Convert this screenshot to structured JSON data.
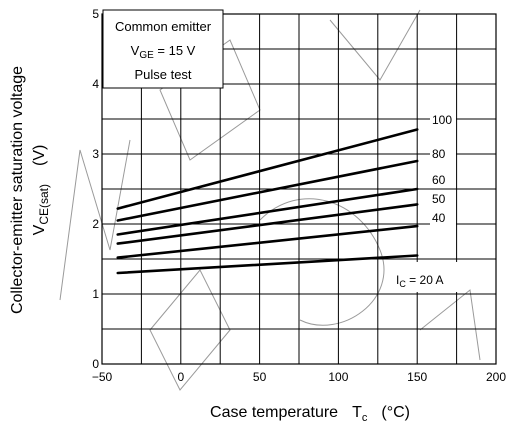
{
  "chart_data": {
    "type": "line",
    "xlabel_text": "Case temperature",
    "xlabel_symbol": "T",
    "xlabel_symbol_sub": "c",
    "xlabel_unit": "(°C)",
    "ylabel_line1": "Collector-emitter saturation voltage",
    "ylabel_symbol": "V",
    "ylabel_symbol_sub": "CE(sat)",
    "ylabel_unit": "(V)",
    "xlim": [
      -50,
      200
    ],
    "ylim": [
      0,
      5
    ],
    "x_ticks": [
      -50,
      0,
      50,
      100,
      150,
      200
    ],
    "y_ticks": [
      0,
      1,
      2,
      3,
      4,
      5
    ],
    "grid": true,
    "conditions": [
      "Common emitter",
      "V_GE = 15 V",
      "Pulse test"
    ],
    "condition_prefix": "V",
    "condition_sub": "GE",
    "condition_suffix": " = 15 V",
    "parameter_symbol": "I",
    "parameter_sub": "C",
    "parameter_suffix": " = 20 A",
    "x": [
      -40,
      150
    ],
    "series": [
      {
        "name": "100",
        "values": [
          2.22,
          3.35
        ]
      },
      {
        "name": "80",
        "values": [
          2.05,
          2.9
        ]
      },
      {
        "name": "60",
        "values": [
          1.85,
          2.5
        ]
      },
      {
        "name": "50",
        "values": [
          1.72,
          2.28
        ]
      },
      {
        "name": "40",
        "values": [
          1.52,
          1.97
        ]
      },
      {
        "name": "20 A",
        "values": [
          1.3,
          1.55
        ]
      }
    ],
    "curve_labels": [
      "100",
      "80",
      "60",
      "50",
      "40"
    ]
  }
}
